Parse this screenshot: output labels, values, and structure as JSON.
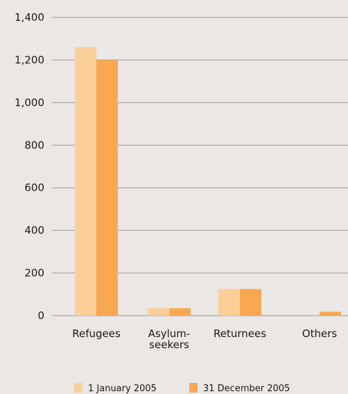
{
  "chart_data": {
    "type": "bar",
    "categories": [
      [
        "Refugees"
      ],
      [
        "Asylum-",
        "seekers"
      ],
      [
        "Returnees"
      ],
      [
        "Others"
      ]
    ],
    "series": [
      {
        "name": "1 January 2005",
        "values": [
          1260,
          35,
          125,
          0
        ],
        "color": "#fbcf9a"
      },
      {
        "name": "31 December 2005",
        "values": [
          1200,
          35,
          125,
          18
        ],
        "color": "#f9a852"
      }
    ],
    "ylim": [
      0,
      1400
    ],
    "yticks": [
      0,
      200,
      400,
      600,
      800,
      1000,
      1200,
      1400
    ],
    "ytick_labels": [
      "0",
      "200",
      "400",
      "600",
      "800",
      "1,000",
      "1,200",
      "1,400"
    ],
    "grid": true,
    "legend_position": "bottom",
    "title": "",
    "xlabel": "",
    "ylabel": ""
  }
}
